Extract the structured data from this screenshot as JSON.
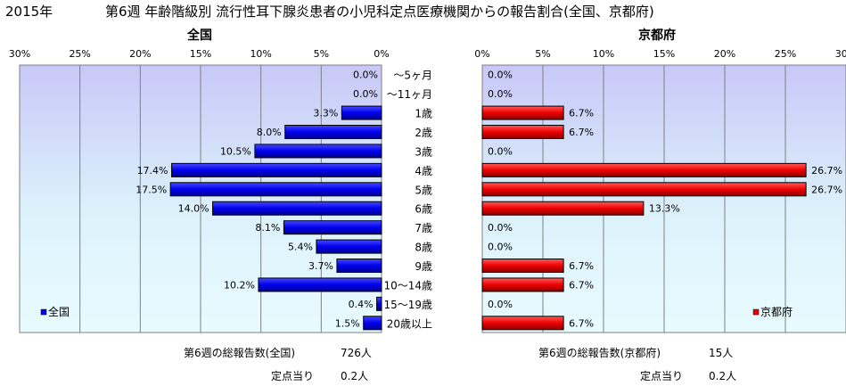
{
  "title_year": "2015年",
  "title_text": "第6週 年齢階級別 流行性耳下腺炎患者の小児科定点医療機関からの報告割合(全国、京都府)",
  "categories": [
    "～5ヶ月",
    "～11ヶ月",
    "1歳",
    "2歳",
    "3歳",
    "4歳",
    "5歳",
    "6歳",
    "7歳",
    "8歳",
    "9歳",
    "10～14歳",
    "15～19歳",
    "20歳以上"
  ],
  "chart_data": [
    {
      "type": "bar",
      "orientation": "horizontal",
      "direction": "reversed",
      "title": "全国",
      "categories": [
        "～5ヶ月",
        "～11ヶ月",
        "1歳",
        "2歳",
        "3歳",
        "4歳",
        "5歳",
        "6歳",
        "7歳",
        "8歳",
        "9歳",
        "10～14歳",
        "15～19歳",
        "20歳以上"
      ],
      "series": [
        {
          "name": "全国",
          "values": [
            0.0,
            0.0,
            3.3,
            8.0,
            10.5,
            17.4,
            17.5,
            14.0,
            8.1,
            5.4,
            3.7,
            10.2,
            0.4,
            1.5
          ]
        }
      ],
      "value_labels": [
        "0.0%",
        "0.0%",
        "3.3%",
        "8.0%",
        "10.5%",
        "17.4%",
        "17.5%",
        "14.0%",
        "8.1%",
        "5.4%",
        "3.7%",
        "10.2%",
        "0.4%",
        "1.5%"
      ],
      "xlim": [
        0,
        30
      ],
      "ticks": [
        "30%",
        "25%",
        "20%",
        "15%",
        "10%",
        "5%",
        "0%"
      ],
      "legend": "bottom-left",
      "color": "#0000ee"
    },
    {
      "type": "bar",
      "orientation": "horizontal",
      "title": "京都府",
      "categories": [
        "～5ヶ月",
        "～11ヶ月",
        "1歳",
        "2歳",
        "3歳",
        "4歳",
        "5歳",
        "6歳",
        "7歳",
        "8歳",
        "9歳",
        "10～14歳",
        "15～19歳",
        "20歳以上"
      ],
      "series": [
        {
          "name": "京都府",
          "values": [
            0.0,
            0.0,
            6.7,
            6.7,
            0.0,
            26.7,
            26.7,
            13.3,
            0.0,
            0.0,
            6.7,
            6.7,
            0.0,
            6.7
          ]
        }
      ],
      "value_labels": [
        "0.0%",
        "0.0%",
        "6.7%",
        "6.7%",
        "0.0%",
        "26.7%",
        "26.7%",
        "13.3%",
        "0.0%",
        "0.0%",
        "6.7%",
        "6.7%",
        "0.0%",
        "6.7%"
      ],
      "xlim": [
        0,
        30
      ],
      "ticks": [
        "0%",
        "5%",
        "10%",
        "15%",
        "20%",
        "25%",
        "30%"
      ],
      "legend": "bottom-right",
      "color": "#ee0000"
    }
  ],
  "summary": {
    "national_label": "第6週の総報告数(全国)",
    "national_value": "726人",
    "national_per_label": "定点当り",
    "national_per_value": "0.2人",
    "kyoto_label": "第6週の総報告数(京都府)",
    "kyoto_value": "15人",
    "kyoto_per_label": "定点当り",
    "kyoto_per_value": "0.2人"
  }
}
